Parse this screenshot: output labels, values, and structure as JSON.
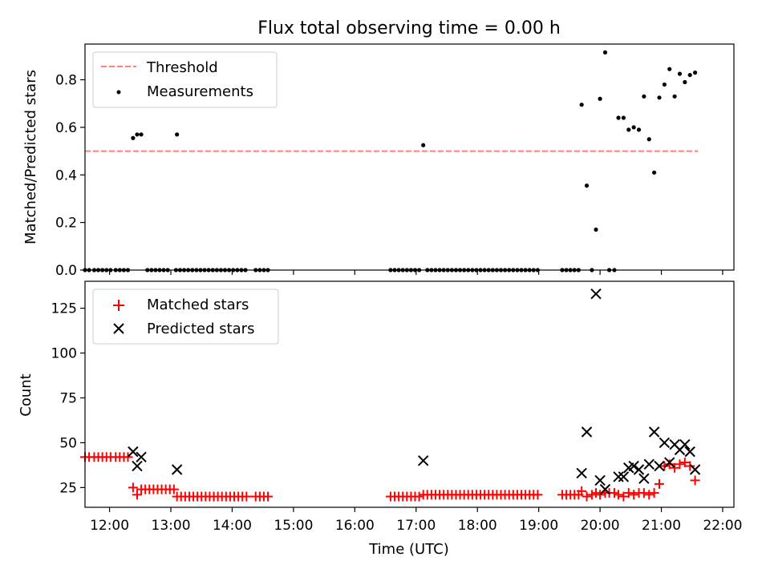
{
  "figure": {
    "title": "Flux total observing time = 0.00 h",
    "xlabel": "Time (UTC)"
  },
  "chart_data": [
    {
      "type": "scatter",
      "ylabel": "Matched/Predicted stars",
      "ylim": [
        0,
        0.95
      ],
      "xlim": [
        "11:36",
        "22:11"
      ],
      "yticks": [
        "0.0",
        "0.2",
        "0.4",
        "0.6",
        "0.8"
      ],
      "ytick_values": [
        0,
        0.2,
        0.4,
        0.6,
        0.8
      ],
      "legend_position": "top-left",
      "threshold": {
        "name": "Threshold",
        "value": 0.5,
        "x_range": [
          "11:36",
          "21:36"
        ],
        "color": "#ff8080",
        "style": "dashed"
      },
      "series": [
        {
          "name": "Measurements",
          "marker": "dot",
          "color": "#000000",
          "points": [
            [
              "11:36",
              0
            ],
            [
              "11:40",
              0
            ],
            [
              "11:45",
              0
            ],
            [
              "11:49",
              0
            ],
            [
              "11:53",
              0
            ],
            [
              "11:57",
              0
            ],
            [
              "12:01",
              0
            ],
            [
              "12:06",
              0
            ],
            [
              "12:10",
              0
            ],
            [
              "12:14",
              0
            ],
            [
              "12:18",
              0
            ],
            [
              "12:23",
              0.555
            ],
            [
              "12:27",
              0.57
            ],
            [
              "12:31",
              0.57
            ],
            [
              "12:37",
              0
            ],
            [
              "12:41",
              0
            ],
            [
              "12:45",
              0
            ],
            [
              "12:49",
              0
            ],
            [
              "12:53",
              0
            ],
            [
              "12:57",
              0
            ],
            [
              "13:06",
              0.57
            ],
            [
              "13:05",
              0
            ],
            [
              "13:09",
              0
            ],
            [
              "13:13",
              0
            ],
            [
              "13:17",
              0
            ],
            [
              "13:21",
              0
            ],
            [
              "13:25",
              0
            ],
            [
              "13:29",
              0
            ],
            [
              "13:33",
              0
            ],
            [
              "13:37",
              0
            ],
            [
              "13:41",
              0
            ],
            [
              "13:45",
              0
            ],
            [
              "13:49",
              0
            ],
            [
              "13:53",
              0
            ],
            [
              "13:57",
              0
            ],
            [
              "14:01",
              0
            ],
            [
              "14:05",
              0
            ],
            [
              "14:09",
              0
            ],
            [
              "14:13",
              0
            ],
            [
              "14:23",
              0
            ],
            [
              "14:27",
              0
            ],
            [
              "14:31",
              0
            ],
            [
              "14:35",
              0
            ],
            [
              "16:35",
              0
            ],
            [
              "16:39",
              0
            ],
            [
              "16:43",
              0
            ],
            [
              "16:47",
              0
            ],
            [
              "16:51",
              0
            ],
            [
              "16:55",
              0
            ],
            [
              "16:59",
              0
            ],
            [
              "17:03",
              0
            ],
            [
              "17:07",
              0.525
            ],
            [
              "17:11",
              0
            ],
            [
              "17:15",
              0
            ],
            [
              "17:19",
              0
            ],
            [
              "17:23",
              0
            ],
            [
              "17:27",
              0
            ],
            [
              "17:31",
              0
            ],
            [
              "17:35",
              0
            ],
            [
              "17:39",
              0
            ],
            [
              "17:43",
              0
            ],
            [
              "17:47",
              0
            ],
            [
              "17:51",
              0
            ],
            [
              "17:55",
              0
            ],
            [
              "17:59",
              0
            ],
            [
              "18:03",
              0
            ],
            [
              "18:07",
              0
            ],
            [
              "18:11",
              0
            ],
            [
              "18:15",
              0
            ],
            [
              "18:19",
              0
            ],
            [
              "18:23",
              0
            ],
            [
              "18:27",
              0
            ],
            [
              "18:31",
              0
            ],
            [
              "18:35",
              0
            ],
            [
              "18:39",
              0
            ],
            [
              "18:43",
              0
            ],
            [
              "18:47",
              0
            ],
            [
              "18:51",
              0
            ],
            [
              "18:55",
              0
            ],
            [
              "18:59",
              0
            ],
            [
              "19:23",
              0
            ],
            [
              "19:27",
              0
            ],
            [
              "19:31",
              0
            ],
            [
              "19:35",
              0
            ],
            [
              "19:39",
              0
            ],
            [
              "19:42",
              0.695
            ],
            [
              "19:47",
              0.355
            ],
            [
              "19:52",
              0
            ],
            [
              "19:56",
              0.17
            ],
            [
              "20:00",
              0.72
            ],
            [
              "20:05",
              0.915
            ],
            [
              "20:09",
              0
            ],
            [
              "20:14",
              0
            ],
            [
              "20:18",
              0.64
            ],
            [
              "20:23",
              0.64
            ],
            [
              "20:28",
              0.59
            ],
            [
              "20:33",
              0.6
            ],
            [
              "20:38",
              0.59
            ],
            [
              "20:43",
              0.73
            ],
            [
              "20:48",
              0.55
            ],
            [
              "20:53",
              0.41
            ],
            [
              "20:58",
              0.725
            ],
            [
              "21:03",
              0.78
            ],
            [
              "21:08",
              0.845
            ],
            [
              "21:13",
              0.73
            ],
            [
              "21:18",
              0.825
            ],
            [
              "21:23",
              0.79
            ],
            [
              "21:28",
              0.82
            ],
            [
              "21:33",
              0.83
            ]
          ]
        }
      ]
    },
    {
      "type": "scatter",
      "ylabel": "Count",
      "ylim": [
        14,
        140
      ],
      "xlim": [
        "11:36",
        "22:11"
      ],
      "yticks": [
        "25",
        "50",
        "75",
        "100",
        "125"
      ],
      "ytick_values": [
        25,
        50,
        75,
        100,
        125
      ],
      "xticks": [
        "12:00",
        "13:00",
        "14:00",
        "15:00",
        "16:00",
        "17:00",
        "18:00",
        "19:00",
        "20:00",
        "21:00",
        "22:00"
      ],
      "legend_position": "top-left",
      "series": [
        {
          "name": "Matched stars",
          "marker": "plus",
          "color": "#ff0000",
          "points": [
            [
              "11:36",
              42
            ],
            [
              "11:40",
              42
            ],
            [
              "11:45",
              42
            ],
            [
              "11:49",
              42
            ],
            [
              "11:53",
              42
            ],
            [
              "11:57",
              42
            ],
            [
              "12:01",
              42
            ],
            [
              "12:06",
              42
            ],
            [
              "12:10",
              42
            ],
            [
              "12:14",
              42
            ],
            [
              "12:18",
              42
            ],
            [
              "12:23",
              25
            ],
            [
              "12:27",
              21
            ],
            [
              "12:31",
              24
            ],
            [
              "12:35",
              24
            ],
            [
              "12:39",
              24
            ],
            [
              "12:43",
              24
            ],
            [
              "12:47",
              24
            ],
            [
              "12:51",
              24
            ],
            [
              "12:55",
              24
            ],
            [
              "12:59",
              24
            ],
            [
              "13:03",
              24
            ],
            [
              "13:06",
              20
            ],
            [
              "13:10",
              20
            ],
            [
              "13:14",
              20
            ],
            [
              "13:18",
              20
            ],
            [
              "13:22",
              20
            ],
            [
              "13:26",
              20
            ],
            [
              "13:30",
              20
            ],
            [
              "13:34",
              20
            ],
            [
              "13:38",
              20
            ],
            [
              "13:42",
              20
            ],
            [
              "13:46",
              20
            ],
            [
              "13:50",
              20
            ],
            [
              "13:54",
              20
            ],
            [
              "13:58",
              20
            ],
            [
              "14:02",
              20
            ],
            [
              "14:06",
              20
            ],
            [
              "14:10",
              20
            ],
            [
              "14:14",
              20
            ],
            [
              "14:23",
              20
            ],
            [
              "14:27",
              20
            ],
            [
              "14:31",
              20
            ],
            [
              "14:35",
              20
            ],
            [
              "16:35",
              20
            ],
            [
              "16:39",
              20
            ],
            [
              "16:43",
              20
            ],
            [
              "16:47",
              20
            ],
            [
              "16:51",
              20
            ],
            [
              "16:55",
              20
            ],
            [
              "16:59",
              20
            ],
            [
              "17:03",
              20
            ],
            [
              "17:07",
              21
            ],
            [
              "17:11",
              21
            ],
            [
              "17:15",
              21
            ],
            [
              "17:19",
              21
            ],
            [
              "17:23",
              21
            ],
            [
              "17:27",
              21
            ],
            [
              "17:31",
              21
            ],
            [
              "17:35",
              21
            ],
            [
              "17:39",
              21
            ],
            [
              "17:43",
              21
            ],
            [
              "17:47",
              21
            ],
            [
              "17:51",
              21
            ],
            [
              "17:55",
              21
            ],
            [
              "17:59",
              21
            ],
            [
              "18:03",
              21
            ],
            [
              "18:07",
              21
            ],
            [
              "18:11",
              21
            ],
            [
              "18:15",
              21
            ],
            [
              "18:19",
              21
            ],
            [
              "18:23",
              21
            ],
            [
              "18:27",
              21
            ],
            [
              "18:31",
              21
            ],
            [
              "18:35",
              21
            ],
            [
              "18:39",
              21
            ],
            [
              "18:43",
              21
            ],
            [
              "18:47",
              21
            ],
            [
              "18:51",
              21
            ],
            [
              "18:55",
              21
            ],
            [
              "18:59",
              21
            ],
            [
              "19:23",
              21
            ],
            [
              "19:27",
              21
            ],
            [
              "19:31",
              21
            ],
            [
              "19:35",
              21
            ],
            [
              "19:39",
              21
            ],
            [
              "19:42",
              23
            ],
            [
              "19:47",
              20
            ],
            [
              "19:52",
              21
            ],
            [
              "19:56",
              22
            ],
            [
              "20:00",
              21
            ],
            [
              "20:05",
              22
            ],
            [
              "20:09",
              22
            ],
            [
              "20:14",
              22
            ],
            [
              "20:18",
              21
            ],
            [
              "20:23",
              20
            ],
            [
              "20:28",
              22
            ],
            [
              "20:33",
              21
            ],
            [
              "20:38",
              22
            ],
            [
              "20:43",
              22
            ],
            [
              "20:48",
              21
            ],
            [
              "20:53",
              22
            ],
            [
              "20:58",
              27
            ],
            [
              "21:03",
              37
            ],
            [
              "21:08",
              38
            ],
            [
              "21:13",
              36
            ],
            [
              "21:18",
              38
            ],
            [
              "21:23",
              39
            ],
            [
              "21:28",
              37
            ],
            [
              "21:33",
              29
            ]
          ]
        },
        {
          "name": "Predicted stars",
          "marker": "x",
          "color": "#000000",
          "points": [
            [
              "12:23",
              45
            ],
            [
              "12:27",
              37
            ],
            [
              "12:31",
              42
            ],
            [
              "13:06",
              35
            ],
            [
              "17:07",
              40
            ],
            [
              "19:42",
              33
            ],
            [
              "19:47",
              56
            ],
            [
              "19:56",
              133
            ],
            [
              "20:00",
              29
            ],
            [
              "20:05",
              24
            ],
            [
              "20:18",
              31
            ],
            [
              "20:23",
              31
            ],
            [
              "20:28",
              36
            ],
            [
              "20:33",
              37
            ],
            [
              "20:38",
              35
            ],
            [
              "20:43",
              30
            ],
            [
              "20:48",
              38
            ],
            [
              "20:53",
              56
            ],
            [
              "20:58",
              37
            ],
            [
              "21:03",
              50
            ],
            [
              "21:08",
              39
            ],
            [
              "21:13",
              49
            ],
            [
              "21:18",
              46
            ],
            [
              "21:23",
              49
            ],
            [
              "21:28",
              45
            ],
            [
              "21:33",
              35
            ]
          ]
        }
      ]
    }
  ]
}
